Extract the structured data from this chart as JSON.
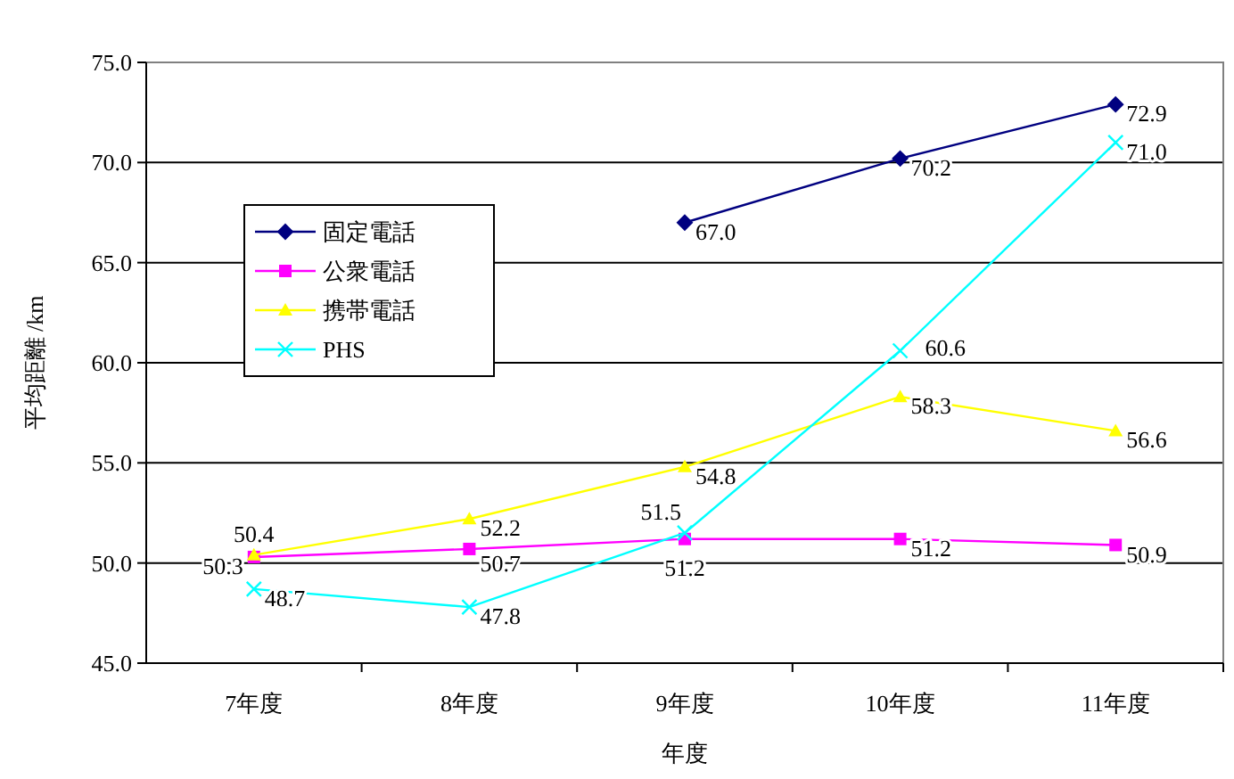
{
  "chart_data": {
    "type": "line",
    "xlabel": "年度",
    "ylabel": "平均距離 /km",
    "categories": [
      "7年度",
      "8年度",
      "9年度",
      "10年度",
      "11年度"
    ],
    "series": [
      {
        "name": "固定電話",
        "color": "#000080",
        "marker": "diamond",
        "values": [
          null,
          null,
          67.0,
          70.2,
          72.9
        ],
        "value_labels": [
          null,
          null,
          "67.0",
          "70.2",
          "72.9"
        ]
      },
      {
        "name": "公衆電話",
        "color": "#ff00ff",
        "marker": "square",
        "values": [
          50.3,
          50.7,
          51.2,
          51.2,
          50.9
        ],
        "value_labels": [
          "50.3",
          "50.7",
          "51.2",
          "51.2",
          "50.9"
        ]
      },
      {
        "name": "携帯電話",
        "color": "#ffff00",
        "marker": "triangle",
        "values": [
          50.4,
          52.2,
          54.8,
          58.3,
          56.6
        ],
        "value_labels": [
          "50.4",
          "52.2",
          "54.8",
          "58.3",
          "56.6"
        ]
      },
      {
        "name": "PHS",
        "color": "#00ffff",
        "marker": "cross",
        "values": [
          48.7,
          47.8,
          51.5,
          60.6,
          71.0
        ],
        "value_labels": [
          "48.7",
          "47.8",
          "51.5",
          "60.6",
          "71.0"
        ]
      }
    ],
    "ylim": [
      45,
      75
    ],
    "yticks": [
      {
        "value": 45,
        "label": "45.0"
      },
      {
        "value": 50,
        "label": "50.0"
      },
      {
        "value": 55,
        "label": "55.0"
      },
      {
        "value": 60,
        "label": "60.0"
      },
      {
        "value": 65,
        "label": "65.0"
      },
      {
        "value": 70,
        "label": "70.0"
      },
      {
        "value": 75,
        "label": "75.0"
      }
    ],
    "grid": "y",
    "legend": "left"
  }
}
